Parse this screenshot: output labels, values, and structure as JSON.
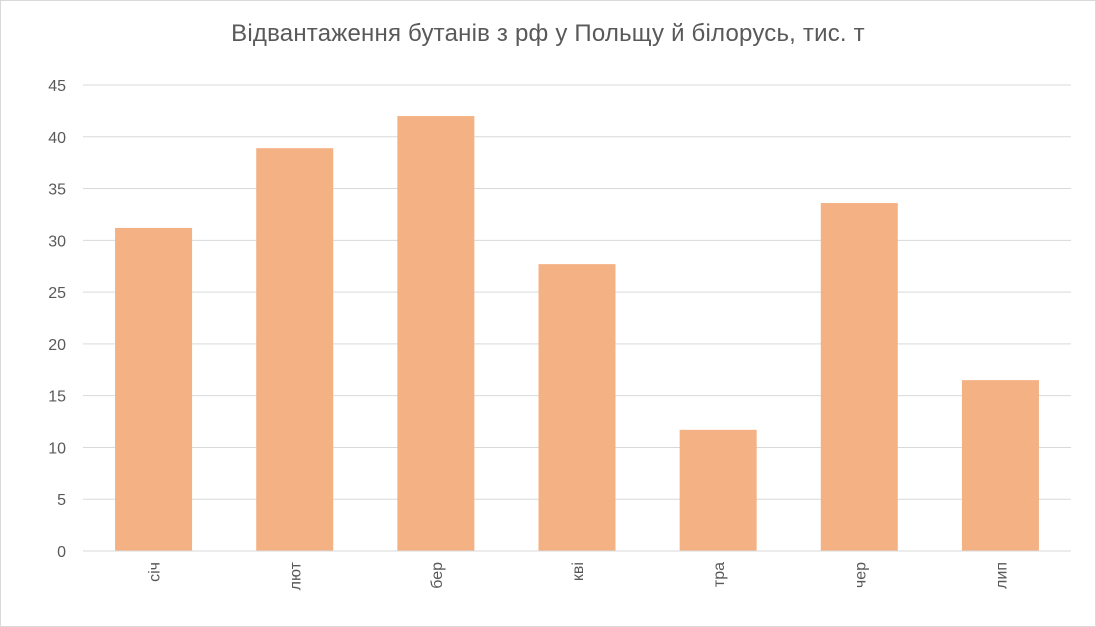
{
  "chart_data": {
    "type": "bar",
    "title": "Відвантаження бутанів з рф у Польщу й білорусь, тис. т",
    "xlabel": "",
    "ylabel": "",
    "categories": [
      "січ",
      "лют",
      "бер",
      "кві",
      "тра",
      "чер",
      "лип"
    ],
    "values": [
      31.2,
      38.9,
      42.0,
      27.7,
      11.7,
      33.6,
      16.5
    ],
    "ylim": [
      0,
      45
    ],
    "yticks": [
      0,
      5,
      10,
      15,
      20,
      25,
      30,
      35,
      40,
      45
    ],
    "grid": true,
    "legend": "none",
    "bar_color": "#F4B183",
    "grid_color": "#d9d9d9",
    "text_color": "#595959"
  }
}
